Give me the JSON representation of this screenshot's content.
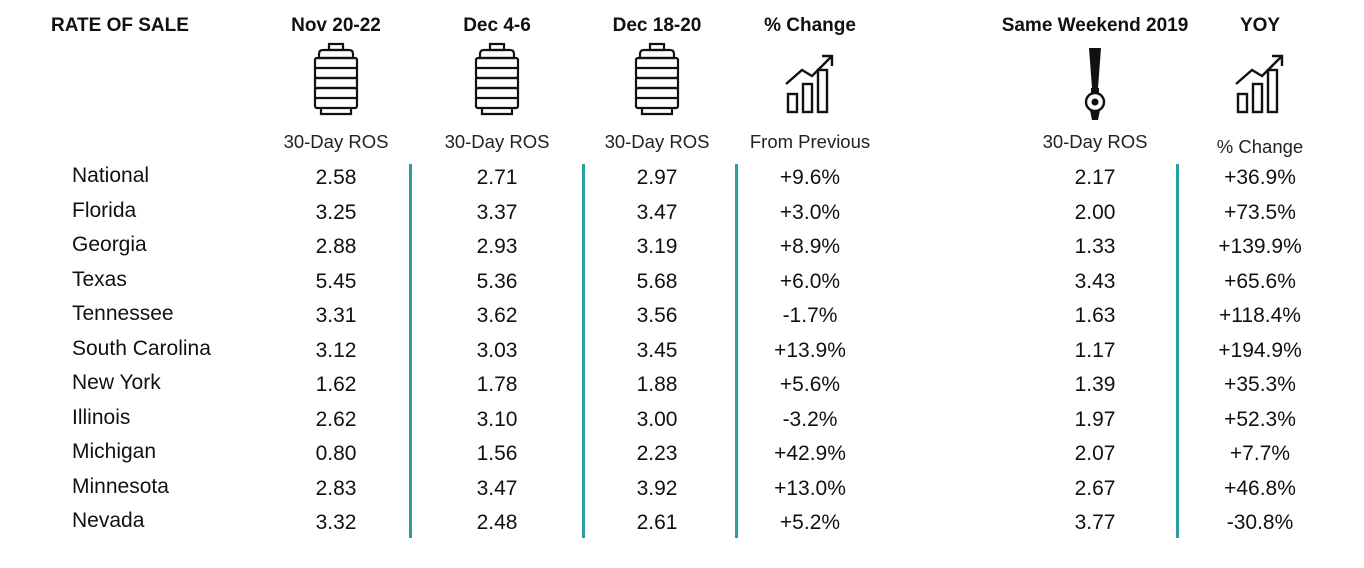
{
  "header": {
    "rate_of_sale": "RATE OF SALE",
    "columns": [
      {
        "title": "Nov 20-22",
        "subtitle": "30-Day ROS",
        "icon": "keg-icon"
      },
      {
        "title": "Dec 4-6",
        "subtitle": "30-Day ROS",
        "icon": "keg-icon"
      },
      {
        "title": "Dec 18-20",
        "subtitle": "30-Day ROS",
        "icon": "keg-icon"
      },
      {
        "title": "% Change",
        "subtitle": "From Previous",
        "icon": "bar-chart-growth-icon"
      },
      {
        "title": "Same Weekend 2019",
        "subtitle": "30-Day ROS",
        "icon": "beer-tap-icon"
      },
      {
        "title": "YOY",
        "subtitle": "% Change",
        "icon": "bar-chart-growth-icon"
      }
    ]
  },
  "rows": [
    {
      "region": "National",
      "values": [
        "2.58",
        "2.71",
        "2.97",
        "+9.6%",
        "2.17",
        "+36.9%"
      ]
    },
    {
      "region": "Florida",
      "values": [
        "3.25",
        "3.37",
        "3.47",
        "+3.0%",
        "2.00",
        "+73.5%"
      ]
    },
    {
      "region": "Georgia",
      "values": [
        "2.88",
        "2.93",
        "3.19",
        "+8.9%",
        "1.33",
        "+139.9%"
      ]
    },
    {
      "region": "Texas",
      "values": [
        "5.45",
        "5.36",
        "5.68",
        "+6.0%",
        "3.43",
        "+65.6%"
      ]
    },
    {
      "region": "Tennessee",
      "values": [
        "3.31",
        "3.62",
        "3.56",
        "-1.7%",
        "1.63",
        "+118.4%"
      ]
    },
    {
      "region": "South Carolina",
      "values": [
        "3.12",
        "3.03",
        "3.45",
        "+13.9%",
        "1.17",
        "+194.9%"
      ]
    },
    {
      "region": "New York",
      "values": [
        "1.62",
        "1.78",
        "1.88",
        "+5.6%",
        "1.39",
        "+35.3%"
      ]
    },
    {
      "region": "Illinois",
      "values": [
        "2.62",
        "3.10",
        "3.00",
        "-3.2%",
        "1.97",
        "+52.3%"
      ]
    },
    {
      "region": "Michigan",
      "values": [
        "0.80",
        "1.56",
        "2.23",
        "+42.9%",
        "2.07",
        "+7.7%"
      ]
    },
    {
      "region": "Minnesota",
      "values": [
        "2.83",
        "3.47",
        "3.92",
        "+13.0%",
        "2.67",
        "+46.8%"
      ]
    },
    {
      "region": "Nevada",
      "values": [
        "3.32",
        "2.48",
        "2.61",
        "+5.2%",
        "3.77",
        "-30.8%"
      ]
    }
  ],
  "colors": {
    "divider": "#2a9d9f",
    "text": "#111111"
  }
}
